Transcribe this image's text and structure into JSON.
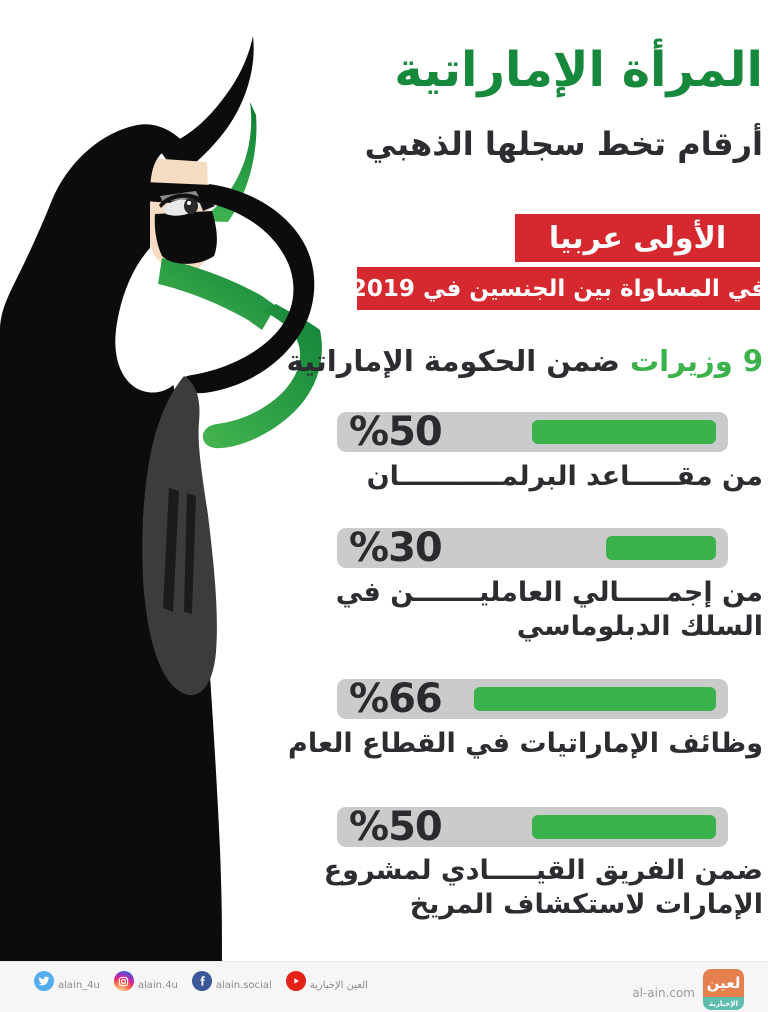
{
  "header": {
    "title": "المرأة الإماراتية",
    "subtitle": "أرقام تخط سجلها الذهبي"
  },
  "badge": {
    "line1": "الأولى عربيا",
    "line2": "في المساواة بين الجنسين في 2019"
  },
  "ministers": {
    "highlight": "9 وزيرات",
    "rest": "ضمن الحكومة الإماراتية"
  },
  "stats": [
    {
      "value": "%50",
      "pct": 50,
      "label": "من مقـــــاعد البرلمـــــــــــان"
    },
    {
      "value": "%30",
      "pct": 30,
      "label": "من إجمـــــالي العامليـــــــن في\nالسلك الدبلوماسي"
    },
    {
      "value": "%66",
      "pct": 66,
      "label": "وظائف الإماراتيات في القطاع العام"
    },
    {
      "value": "%50",
      "pct": 50,
      "label": "ضمن الفريق القيـــــادي لمشروع\nالإمارات لاستكشاف المريخ"
    }
  ],
  "footer": {
    "social": [
      {
        "icon": "twitter-icon",
        "handle": "alain_4u"
      },
      {
        "icon": "instagram-icon",
        "handle": "alain.4u"
      },
      {
        "icon": "facebook-icon",
        "handle": "alain.social"
      },
      {
        "icon": "youtube-icon",
        "handle": "العين الإخبارية"
      }
    ],
    "website": "al-ain.com",
    "logo_top": "لعين",
    "logo_bottom": "الإخبارية"
  },
  "colors": {
    "title_green": "#17893c",
    "accent_green": "#3cb24c",
    "badge_red": "#d5292f",
    "text_dark": "#2d2d31",
    "bar_track": "#cbcbcb",
    "footer_bg": "#f6f6f6"
  },
  "chart_data": {
    "type": "bar",
    "title": "المرأة الإماراتية — أرقام تخط سجلها الذهبي",
    "categories": [
      "من مقاعد البرلمان",
      "من إجمالي العاملين في السلك الدبلوماسي",
      "وظائف الإماراتيات في القطاع العام",
      "ضمن الفريق القيادي لمشروع الإمارات لاستكشاف المريخ"
    ],
    "values": [
      50,
      30,
      66,
      50
    ],
    "unit": "%",
    "xlim": [
      0,
      100
    ],
    "annotations": [
      "الأولى عربيا في المساواة بين الجنسين في 2019",
      "9 وزيرات ضمن الحكومة الإماراتية"
    ],
    "legend": false,
    "grid": false
  }
}
